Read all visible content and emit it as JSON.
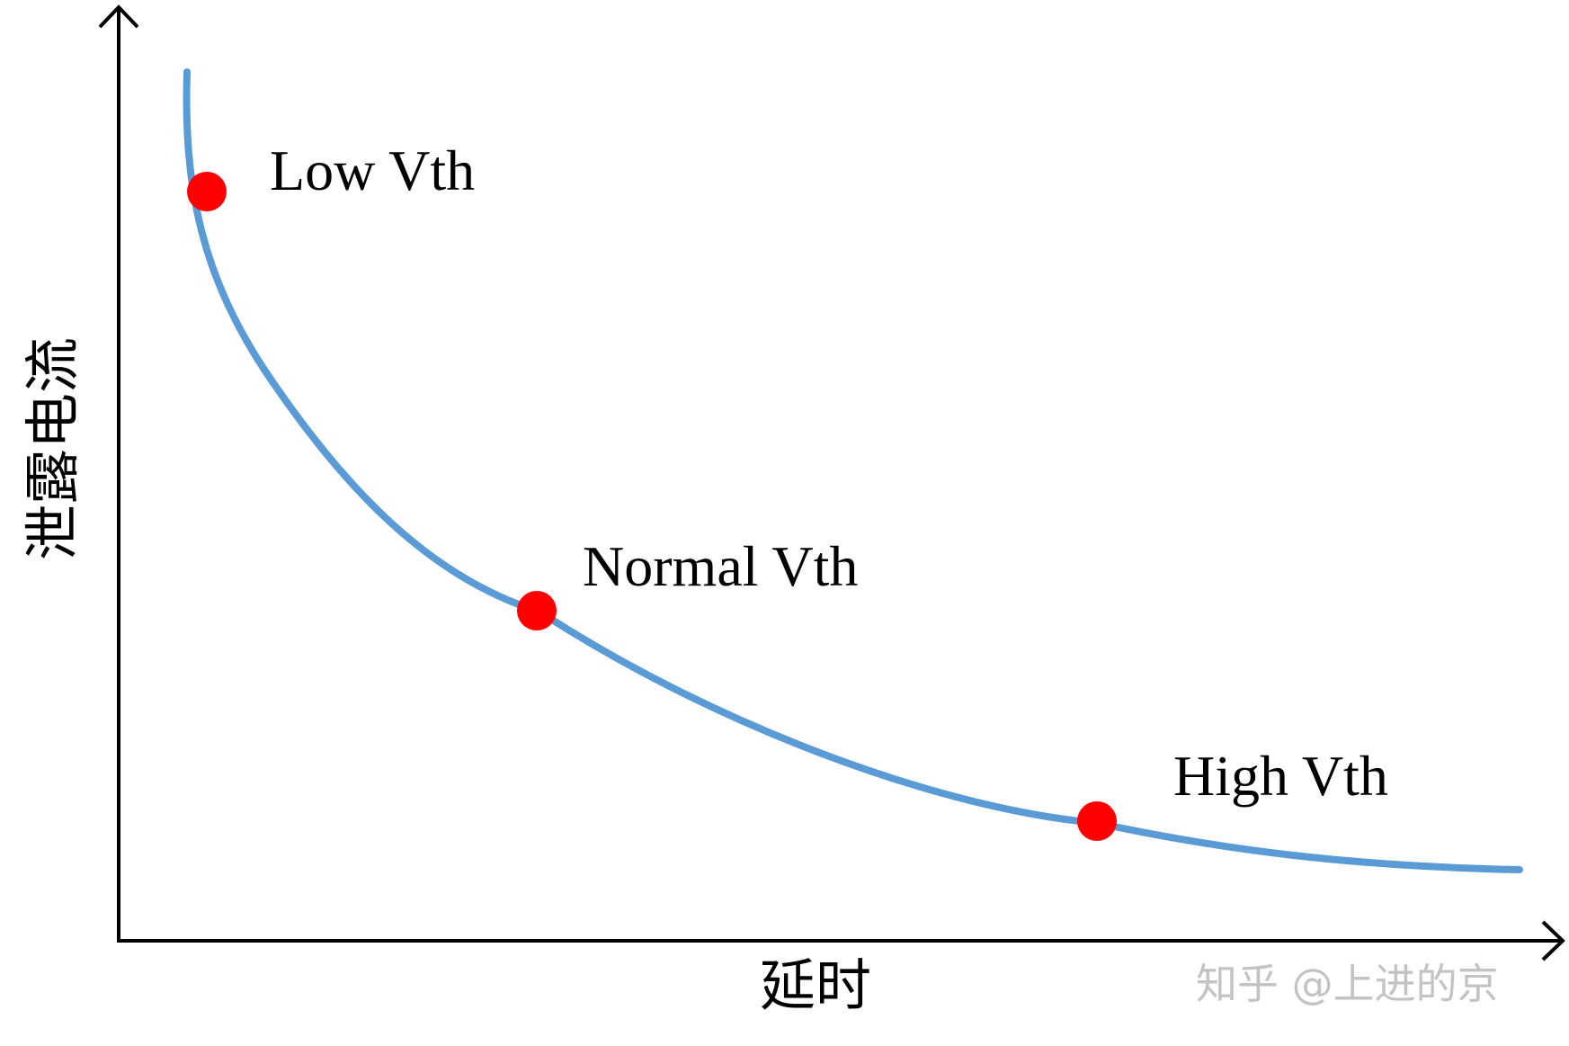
{
  "diagram": {
    "x_axis_label": "延时",
    "y_axis_label": "泄露电流",
    "watermark": "知乎 @上进的京",
    "colors": {
      "curve": "#5b9bd5",
      "point": "#ff0000",
      "axis": "#000000"
    },
    "points": [
      {
        "label": "Low Vth"
      },
      {
        "label": "Normal Vth"
      },
      {
        "label": "High Vth"
      }
    ]
  }
}
